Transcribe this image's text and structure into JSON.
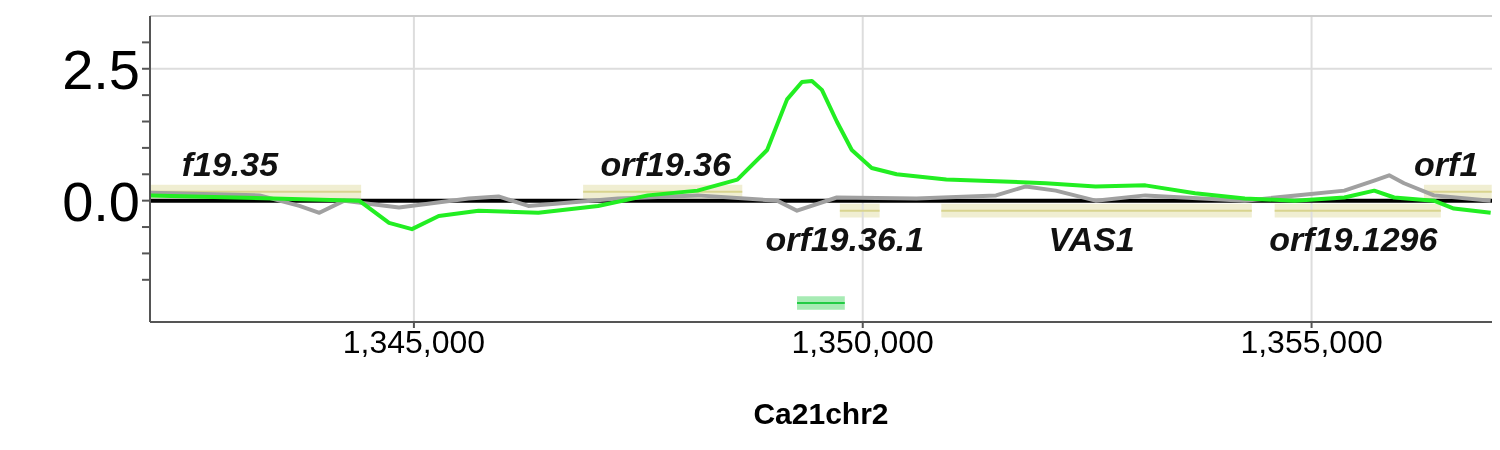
{
  "chart_data": {
    "type": "line",
    "xlabel": "Ca21chr2",
    "xlim": [
      1342060,
      1357010
    ],
    "xticks": [
      {
        "value": 1345000,
        "label": "1,345,000"
      },
      {
        "value": 1350000,
        "label": "1,350,000"
      },
      {
        "value": 1355000,
        "label": "1,355,000"
      }
    ],
    "ylim": [
      -2.3,
      3.5
    ],
    "yticks": [
      {
        "value": -1.5,
        "label": null
      },
      {
        "value": -1,
        "label": null
      },
      {
        "value": -0.5,
        "label": null
      },
      {
        "value": 0,
        "label": "0.0"
      },
      {
        "value": 0.5,
        "label": null
      },
      {
        "value": 1,
        "label": null
      },
      {
        "value": 1.5,
        "label": null
      },
      {
        "value": 2,
        "label": null
      },
      2.5,
      {
        "value": 3,
        "label": null
      }
    ],
    "grid": true,
    "marker": "none",
    "line_style": "solid",
    "ref_lines": [
      {
        "axis": "y",
        "value": 0,
        "color": "#000000"
      }
    ],
    "series": [
      {
        "color": "#d9d48f",
        "x": [
          1342062,
          1344412
        ],
        "values": [
          0.17,
          0.17
        ],
        "lower": [
          0.04,
          0.04
        ],
        "upper": [
          0.3,
          0.3
        ]
      },
      {
        "color": "#d9d48f",
        "x": [
          1346885,
          1348658
        ],
        "values": [
          0.17,
          0.17
        ],
        "lower": [
          0.04,
          0.04
        ],
        "upper": [
          0.3,
          0.3
        ]
      },
      {
        "color": "#d9d48f",
        "x": [
          1349745,
          1350188
        ],
        "values": [
          -0.19,
          -0.19
        ],
        "lower": [
          -0.06,
          -0.06
        ],
        "upper": [
          -0.32,
          -0.32
        ]
      },
      {
        "color": "#d9d48f",
        "x": [
          1350875,
          1354334
        ],
        "values": [
          -0.19,
          -0.19
        ],
        "lower": [
          -0.06,
          -0.06
        ],
        "upper": [
          -0.32,
          -0.32
        ]
      },
      {
        "color": "#d9d48f",
        "x": [
          1354589,
          1356440
        ],
        "values": [
          -0.19,
          -0.19
        ],
        "lower": [
          -0.06,
          -0.06
        ],
        "upper": [
          -0.32,
          -0.32
        ]
      },
      {
        "color": "#d9d48f",
        "x": [
          1356252,
          1357007
        ],
        "values": [
          0.17,
          0.17
        ],
        "lower": [
          0.04,
          0.04
        ],
        "upper": [
          0.3,
          0.3
        ]
      },
      {
        "color": "#22cc44",
        "x": [
          1349268,
          1349800
        ],
        "values": [
          -1.94,
          -1.94
        ],
        "lower": [
          -2.07,
          -2.07
        ],
        "upper": [
          -1.81,
          -1.81
        ]
      },
      {
        "color": "#a0a0a0",
        "x": [
          1342062,
          1343281,
          1343725,
          1343947,
          1344224,
          1344834,
          1345610,
          1345942,
          1346275,
          1347272,
          1348159,
          1349046,
          1349268,
          1349711,
          1350598,
          1351485,
          1351817,
          1352150,
          1352594,
          1353148,
          1354257,
          1355365,
          1355698,
          1355864,
          1356030,
          1356363,
          1356995
        ],
        "values": [
          0.15,
          0.1,
          -0.1,
          -0.23,
          0,
          -0.13,
          0.04,
          0.08,
          -0.1,
          0.04,
          0.1,
          0,
          -0.19,
          0.06,
          0.04,
          0.1,
          0.27,
          0.19,
          0,
          0.1,
          0,
          0.19,
          0.38,
          0.48,
          0.33,
          0.1,
          0
        ]
      },
      {
        "color": "#22ee22",
        "x": [
          1342062,
          1344390,
          1344723,
          1344978,
          1345277,
          1345720,
          1346386,
          1347051,
          1347605,
          1348159,
          1348603,
          1348935,
          1349157,
          1349323,
          1349434,
          1349545,
          1349711,
          1349878,
          1350100,
          1350377,
          1350931,
          1351485,
          1352039,
          1352594,
          1353148,
          1353702,
          1354257,
          1354811,
          1355365,
          1355698,
          1355920,
          1356363,
          1356585,
          1356995
        ],
        "values": [
          0.1,
          0,
          -0.42,
          -0.54,
          -0.29,
          -0.19,
          -0.23,
          -0.1,
          0.1,
          0.19,
          0.4,
          0.96,
          1.92,
          2.25,
          2.27,
          2.1,
          1.5,
          0.96,
          0.62,
          0.5,
          0.4,
          0.37,
          0.33,
          0.27,
          0.29,
          0.14,
          0.04,
          0,
          0.06,
          0.19,
          0.06,
          0,
          -0.15,
          -0.23
        ]
      }
    ],
    "annotations": [
      {
        "text": "f19.35",
        "x": 1342950,
        "y": 0.17
      },
      {
        "text": "orf19.36",
        "x": 1347805,
        "y": 0.17
      },
      {
        "text": "orf19.36.1",
        "x": 1349800,
        "y": -0.19
      },
      {
        "text": "VAS1",
        "x": 1352550,
        "y": -0.19
      },
      {
        "text": "orf19.1296",
        "x": 1355465,
        "y": -0.19
      },
      {
        "text": "orf1",
        "x": 1356500,
        "y": 0.17
      }
    ]
  }
}
